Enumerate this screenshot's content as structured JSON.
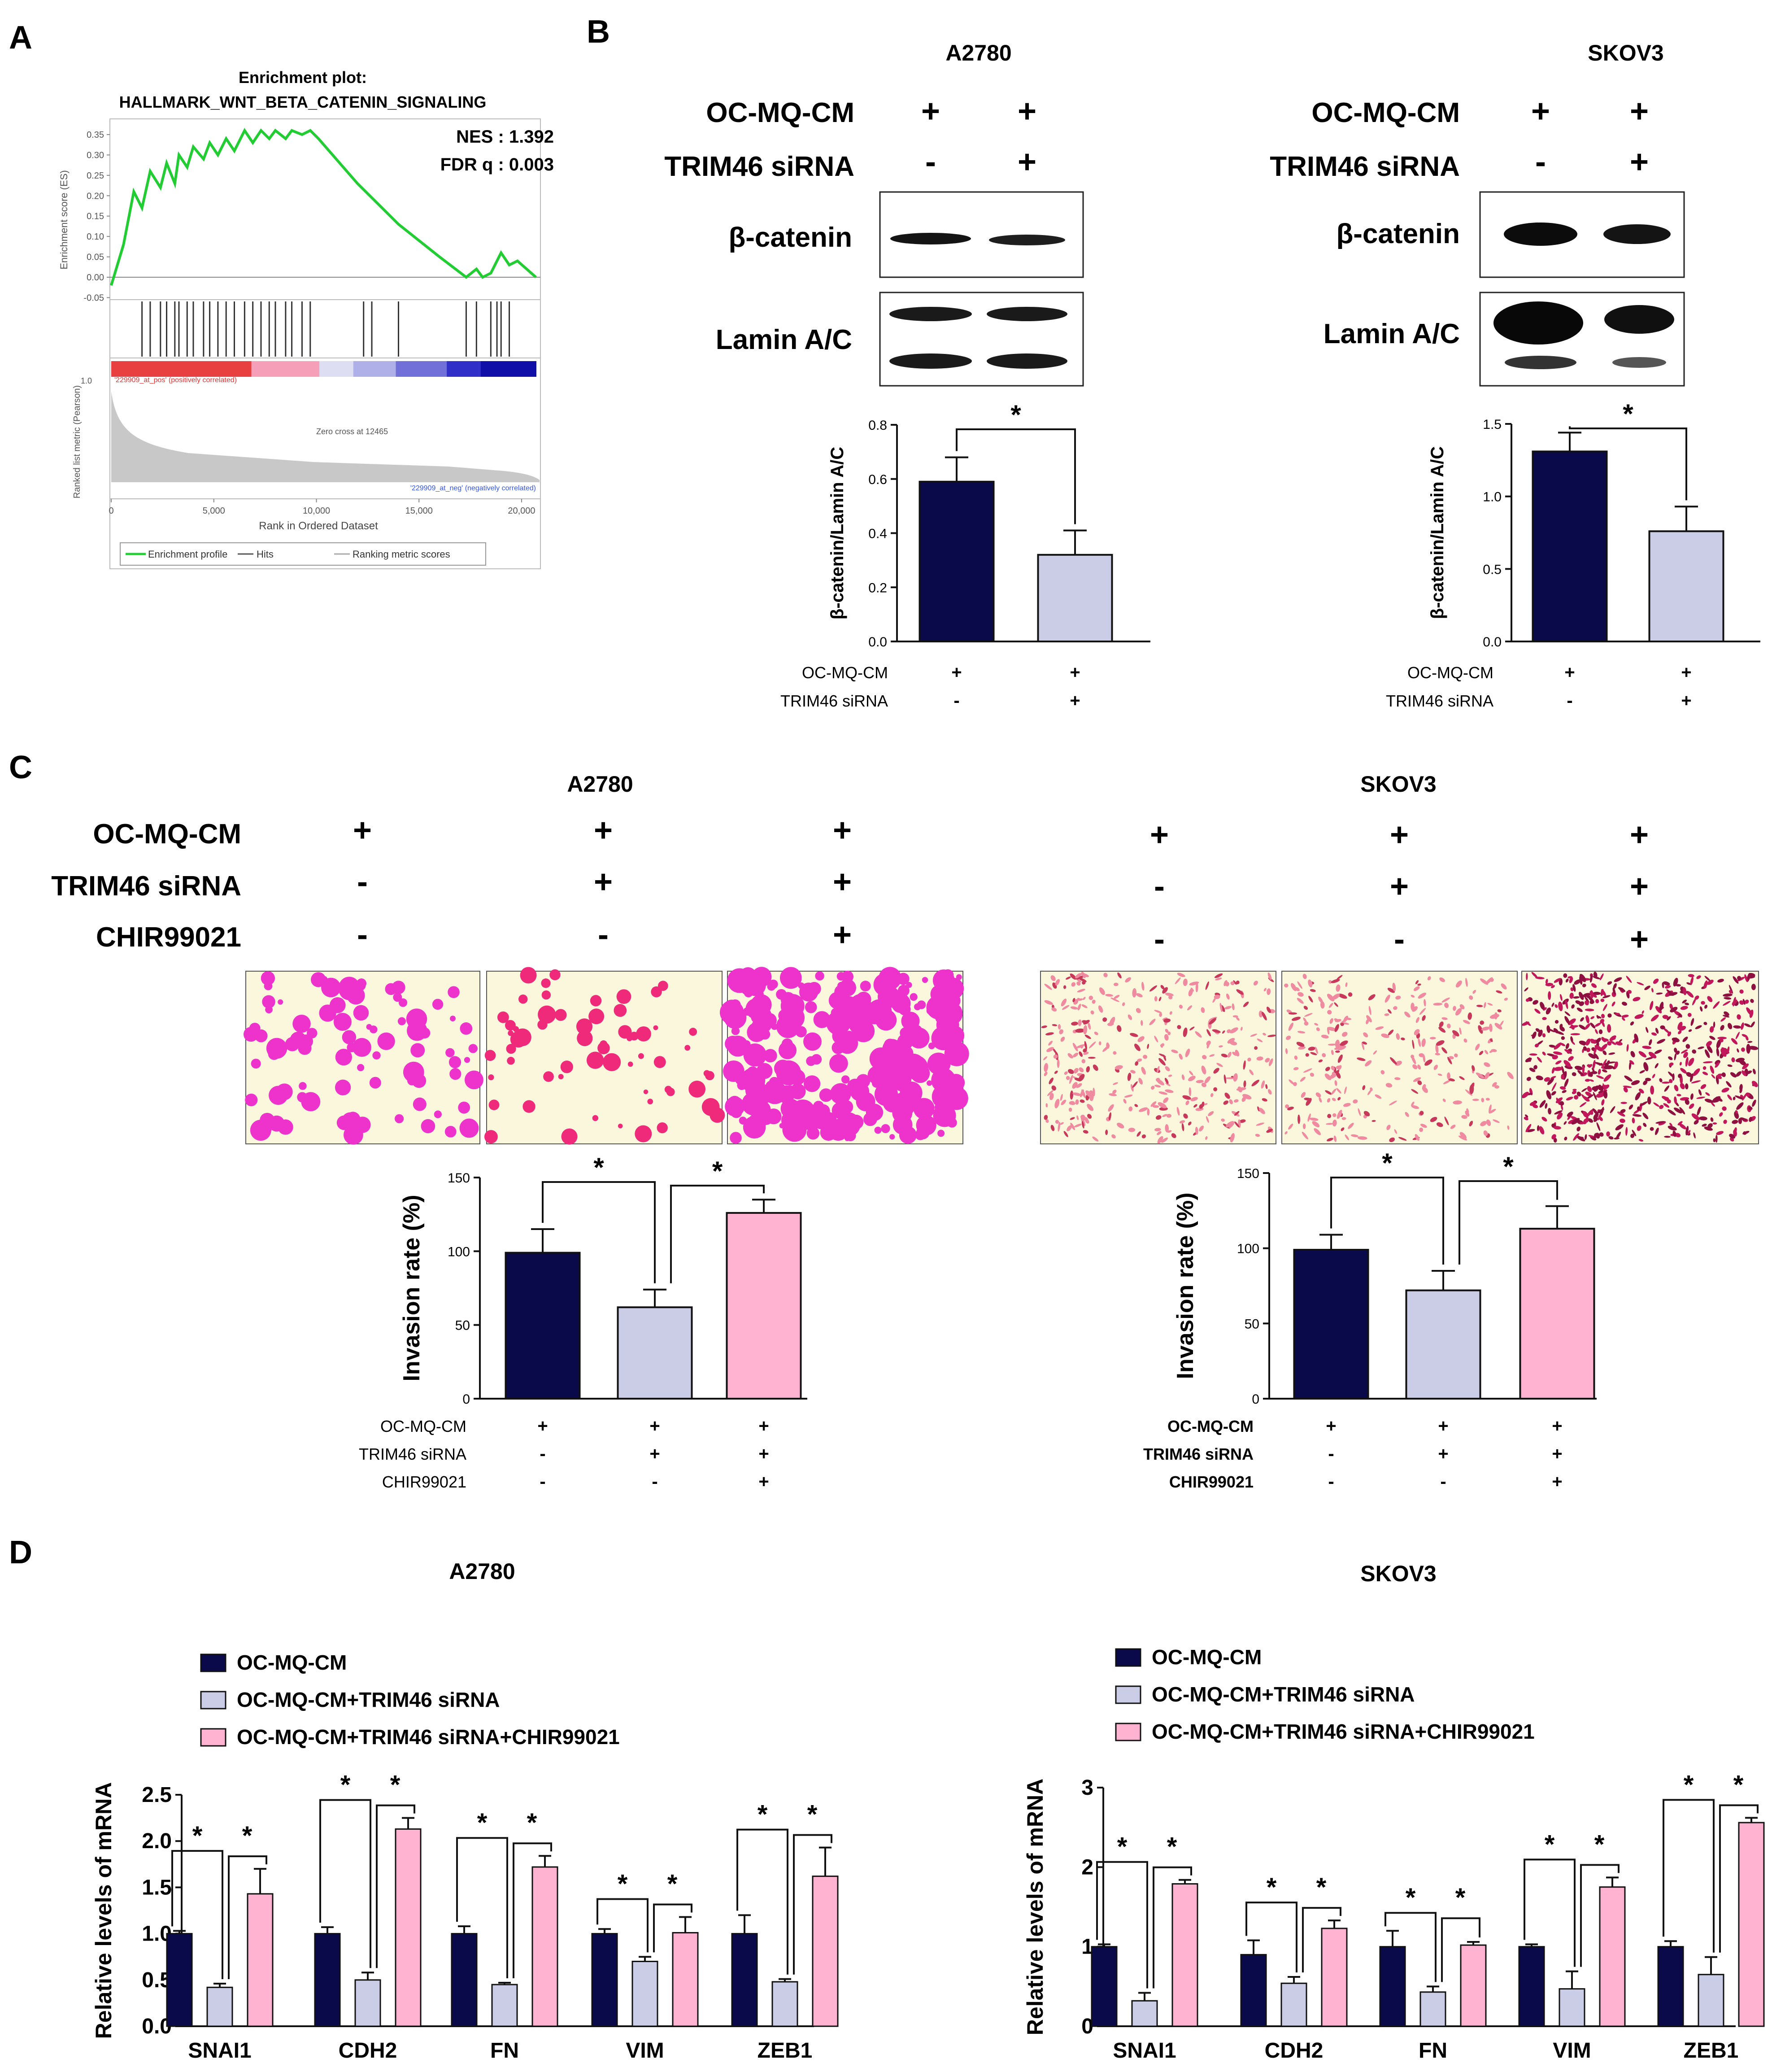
{
  "panel_labels": {
    "a": "A",
    "b": "B",
    "c": "C",
    "d": "D"
  },
  "colors": {
    "navy": "#0a0a4a",
    "lavender": "#cbcce6",
    "pink": "#ffb3d1",
    "gsea_green": "#22cc33",
    "invasion_magenta": "#ee33cc",
    "invasion_red": "#e03060"
  },
  "gsea": {
    "title_line1": "Enrichment plot:",
    "title_line2": "HALLMARK_WNT_BETA_CATENIN_SIGNALING",
    "nes": "NES : 1.392",
    "fdr": "FDR q : 0.003",
    "y_label": "Enrichment score (ES)",
    "y_ticks": [
      "0.35",
      "0.30",
      "0.25",
      "0.20",
      "0.15",
      "0.10",
      "0.05",
      "0.00",
      "-0.05"
    ],
    "metric_label": "Ranked list metric (Pearson)",
    "metric_tick": "1.0",
    "pos_label": "'229909_at_pos' (positively correlated)",
    "neg_label": "'229909_at_neg' (negatively correlated)",
    "zero_cross": "Zero cross at 12465",
    "x_label": "Rank in Ordered Dataset",
    "x_ticks": [
      "0",
      "5,000",
      "10,000",
      "15,000",
      "20,000"
    ],
    "legend": [
      "Enrichment profile",
      "Hits",
      "Ranking metric scores"
    ],
    "es_curve": {
      "rank": [
        0,
        600,
        1100,
        1500,
        1900,
        2400,
        2700,
        3100,
        3300,
        3700,
        4000,
        4500,
        4800,
        5200,
        5600,
        6000,
        6500,
        6900,
        7300,
        7700,
        8000,
        8500,
        8800,
        9300,
        9700,
        10100,
        12000,
        14000,
        16000,
        17300,
        17800,
        18100,
        18500,
        19000,
        19400,
        19800,
        20700
      ],
      "es": [
        -0.02,
        0.08,
        0.21,
        0.17,
        0.26,
        0.22,
        0.28,
        0.23,
        0.3,
        0.27,
        0.32,
        0.29,
        0.33,
        0.3,
        0.34,
        0.31,
        0.36,
        0.33,
        0.36,
        0.34,
        0.36,
        0.34,
        0.36,
        0.35,
        0.36,
        0.34,
        0.23,
        0.13,
        0.05,
        0.0,
        0.02,
        0.0,
        0.01,
        0.06,
        0.03,
        0.04,
        0.0
      ]
    },
    "hits": [
      1500,
      1900,
      2400,
      2700,
      3100,
      3300,
      3700,
      4000,
      4500,
      4800,
      5200,
      5600,
      6000,
      6500,
      6900,
      7300,
      7700,
      8000,
      8500,
      8800,
      9300,
      9700,
      12300,
      12700,
      14000,
      17300,
      17800,
      18500,
      18800,
      19000,
      19400
    ]
  },
  "blot_b": {
    "row_labels": {
      "cm": "OC-MQ-CM",
      "si": "TRIM46 siRNA"
    },
    "bands": {
      "beta": "β-catenin",
      "lamin": "Lamin A/C"
    },
    "a2780": {
      "cell_line": "A2780",
      "cm": [
        "+",
        "+"
      ],
      "si": [
        "-",
        "+"
      ]
    },
    "skov3": {
      "cell_line": "SKOV3",
      "cm": [
        "+",
        "+"
      ],
      "si": [
        "-",
        "+"
      ]
    }
  },
  "invasion_c": {
    "row_labels": {
      "cm": "OC-MQ-CM",
      "si": "TRIM46 siRNA",
      "chir": "CHIR99021"
    },
    "a2780": {
      "cell_line": "A2780",
      "cm": [
        "+",
        "+",
        "+"
      ],
      "si": [
        "-",
        "+",
        "+"
      ],
      "chir": [
        "-",
        "-",
        "+"
      ]
    },
    "skov3": {
      "cell_line": "SKOV3",
      "cm": [
        "+",
        "+",
        "+"
      ],
      "si": [
        "-",
        "+",
        "+"
      ],
      "chir": [
        "-",
        "-",
        "+"
      ]
    }
  },
  "chart_data": [
    {
      "id": "b_a2780",
      "type": "bar",
      "title": "",
      "xlabel": "",
      "ylabel": "β-catenin/Lamin  A/C",
      "ylim": [
        0,
        0.8
      ],
      "yticks": [
        "0.0",
        "0.2",
        "0.4",
        "0.6",
        "0.8"
      ],
      "ytick_values": [
        0,
        0.2,
        0.4,
        0.6,
        0.8
      ],
      "values": [
        0.59,
        0.32
      ],
      "errors": [
        0.09,
        0.09
      ],
      "conditions": [
        [
          "+",
          "-"
        ],
        [
          "+",
          "+"
        ]
      ],
      "condition_labels": [
        "OC-MQ-CM",
        "TRIM46 siRNA"
      ],
      "significance": [
        {
          "from": 0,
          "to": 1,
          "label": "*"
        }
      ]
    },
    {
      "id": "b_skov3",
      "type": "bar",
      "title": "",
      "xlabel": "",
      "ylabel": "β-catenin/Lamin  A/C",
      "ylim": [
        0,
        1.5
      ],
      "yticks": [
        "0.0",
        "0.5",
        "1.0",
        "1.5"
      ],
      "ytick_values": [
        0,
        0.5,
        1.0,
        1.5
      ],
      "values": [
        1.31,
        0.76
      ],
      "errors": [
        0.13,
        0.17
      ],
      "conditions": [
        [
          "+",
          "-"
        ],
        [
          "+",
          "+"
        ]
      ],
      "condition_labels": [
        "OC-MQ-CM",
        "TRIM46 siRNA"
      ],
      "significance": [
        {
          "from": 0,
          "to": 1,
          "label": "*"
        }
      ]
    },
    {
      "id": "c_a2780",
      "type": "bar",
      "title": "",
      "xlabel": "",
      "ylabel": "Invasion rate (%)",
      "ylim": [
        0,
        150
      ],
      "yticks": [
        "0",
        "50",
        "100",
        "150"
      ],
      "ytick_values": [
        0,
        50,
        100,
        150
      ],
      "values": [
        99,
        62,
        126
      ],
      "errors": [
        16,
        12,
        9
      ],
      "conditions": [
        [
          "+",
          "-",
          "-"
        ],
        [
          "+",
          "+",
          "-"
        ],
        [
          "+",
          "+",
          "+"
        ]
      ],
      "condition_labels": [
        "OC-MQ-CM",
        "TRIM46 siRNA",
        "CHIR99021"
      ],
      "significance": [
        {
          "from": 0,
          "to": 1,
          "label": "*"
        },
        {
          "from": 1,
          "to": 2,
          "label": "*"
        }
      ]
    },
    {
      "id": "c_skov3",
      "type": "bar",
      "title": "",
      "xlabel": "",
      "ylabel": "Invasion rate (%)",
      "ylim": [
        0,
        150
      ],
      "yticks": [
        "0",
        "50",
        "100",
        "150"
      ],
      "ytick_values": [
        0,
        50,
        100,
        150
      ],
      "values": [
        99,
        72,
        113
      ],
      "errors": [
        10,
        13,
        15
      ],
      "conditions": [
        [
          "+",
          "-",
          "-"
        ],
        [
          "+",
          "+",
          "-"
        ],
        [
          "+",
          "+",
          "+"
        ]
      ],
      "condition_labels": [
        "OC-MQ-CM",
        "TRIM46 siRNA",
        "CHIR99021"
      ],
      "significance": [
        {
          "from": 0,
          "to": 1,
          "label": "*"
        },
        {
          "from": 1,
          "to": 2,
          "label": "*"
        }
      ]
    },
    {
      "id": "d_a2780",
      "type": "bar",
      "title": "A2780",
      "xlabel": "",
      "ylabel": "Relative levels of mRNA",
      "ylim": [
        0,
        2.5
      ],
      "yticks": [
        "0.0",
        "0.5",
        "1.0",
        "1.5",
        "2.0",
        "2.5"
      ],
      "ytick_values": [
        0,
        0.5,
        1.0,
        1.5,
        2.0,
        2.5
      ],
      "categories": [
        "SNAI1",
        "CDH2",
        "FN",
        "VIM",
        "ZEB1"
      ],
      "series": [
        {
          "name": "OC-MQ-CM",
          "values": [
            1.0,
            1.0,
            1.0,
            1.0,
            1.0
          ],
          "errors": [
            0.03,
            0.07,
            0.08,
            0.05,
            0.2
          ]
        },
        {
          "name": "OC-MQ-CM+TRIM46 siRNA",
          "values": [
            0.42,
            0.5,
            0.45,
            0.7,
            0.48
          ],
          "errors": [
            0.04,
            0.08,
            0.02,
            0.05,
            0.03
          ]
        },
        {
          "name": "OC-MQ-CM+TRIM46 siRNA+CHIR99021",
          "values": [
            1.43,
            2.13,
            1.72,
            1.01,
            1.62
          ],
          "errors": [
            0.27,
            0.12,
            0.12,
            0.17,
            0.31
          ]
        }
      ],
      "significance_label": "*"
    },
    {
      "id": "d_skov3",
      "type": "bar",
      "title": "SKOV3",
      "xlabel": "",
      "ylabel": "Relative levels of mRNA",
      "ylim": [
        0,
        3
      ],
      "yticks": [
        "0",
        "1",
        "2",
        "3"
      ],
      "ytick_values": [
        0,
        1,
        2,
        3
      ],
      "categories": [
        "SNAI1",
        "CDH2",
        "FN",
        "VIM",
        "ZEB1"
      ],
      "series": [
        {
          "name": "OC-MQ-CM",
          "values": [
            1.0,
            0.9,
            1.0,
            1.0,
            1.0
          ],
          "errors": [
            0.03,
            0.18,
            0.2,
            0.03,
            0.07
          ]
        },
        {
          "name": "OC-MQ-CM+TRIM46 siRNA",
          "values": [
            0.32,
            0.54,
            0.43,
            0.47,
            0.65
          ],
          "errors": [
            0.1,
            0.08,
            0.07,
            0.22,
            0.22
          ]
        },
        {
          "name": "OC-MQ-CM+TRIM46 siRNA+CHIR99021",
          "values": [
            1.79,
            1.23,
            1.02,
            1.75,
            2.56
          ],
          "errors": [
            0.05,
            0.1,
            0.04,
            0.12,
            0.06
          ]
        }
      ],
      "significance_label": "*"
    }
  ]
}
